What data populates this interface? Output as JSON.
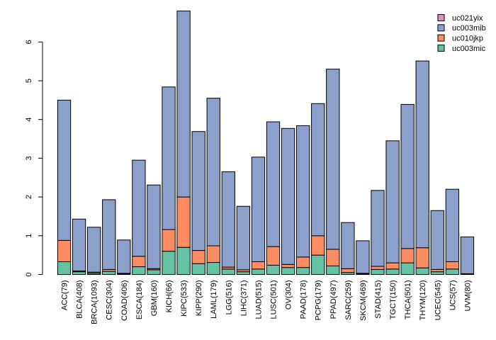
{
  "chart_data": {
    "type": "bar",
    "stacked": true,
    "title": "",
    "xlabel": "",
    "ylabel": "",
    "ylim": [
      0,
      6.8
    ],
    "yticks": [
      "0",
      "1",
      "2",
      "3",
      "4",
      "5",
      "6"
    ],
    "legend_position": "top-right",
    "categories": [
      "ACC(79)",
      "BLCA(408)",
      "BRCA(1093)",
      "CESC(304)",
      "COAD(406)",
      "ESCA(184)",
      "GBM(160)",
      "KICH(66)",
      "KIPC(533)",
      "KIPP(290)",
      "LAML(179)",
      "LGG(516)",
      "LIHC(371)",
      "LUAD(515)",
      "LUSC(501)",
      "OV(304)",
      "PAAD(178)",
      "PCPG(179)",
      "PPAD(497)",
      "SARC(259)",
      "SKCM(469)",
      "STAD(415)",
      "TGCT(150)",
      "THCA(501)",
      "THYM(120)",
      "UCEC(545)",
      "UCS(57)",
      "UVM(80)"
    ],
    "series": [
      {
        "name": "uc003mic",
        "color": "#66c2a5",
        "values": [
          0.33,
          0.07,
          0.03,
          0.08,
          0.02,
          0.2,
          0.12,
          0.6,
          0.7,
          0.28,
          0.31,
          0.14,
          0.07,
          0.14,
          0.24,
          0.18,
          0.18,
          0.5,
          0.22,
          0.05,
          0.02,
          0.13,
          0.14,
          0.3,
          0.17,
          0.07,
          0.14,
          0.01
        ]
      },
      {
        "name": "uc010jkp",
        "color": "#fc8d62",
        "values": [
          0.55,
          0.02,
          0.03,
          0.05,
          0.01,
          0.27,
          0.03,
          0.56,
          1.3,
          0.34,
          0.43,
          0.05,
          0.05,
          0.19,
          0.48,
          0.08,
          0.27,
          0.5,
          0.43,
          0.1,
          0.01,
          0.08,
          0.16,
          0.37,
          0.52,
          0.06,
          0.19,
          0.01
        ]
      },
      {
        "name": "uc003mib",
        "color": "#8da0cb",
        "values": [
          3.62,
          1.34,
          1.16,
          1.8,
          0.86,
          2.48,
          2.16,
          3.68,
          4.8,
          3.07,
          3.81,
          2.46,
          1.64,
          2.7,
          3.22,
          3.51,
          3.39,
          3.41,
          4.65,
          1.19,
          0.84,
          1.96,
          3.15,
          3.72,
          4.82,
          1.52,
          1.87,
          0.95
        ]
      },
      {
        "name": "uc021yix",
        "color": "#e78ac3",
        "values": [
          0,
          0,
          0,
          0,
          0,
          0,
          0,
          0,
          0,
          0,
          0,
          0,
          0,
          0,
          0,
          0,
          0,
          0,
          0,
          0,
          0,
          0,
          0,
          0,
          0,
          0,
          0,
          0
        ]
      }
    ]
  }
}
